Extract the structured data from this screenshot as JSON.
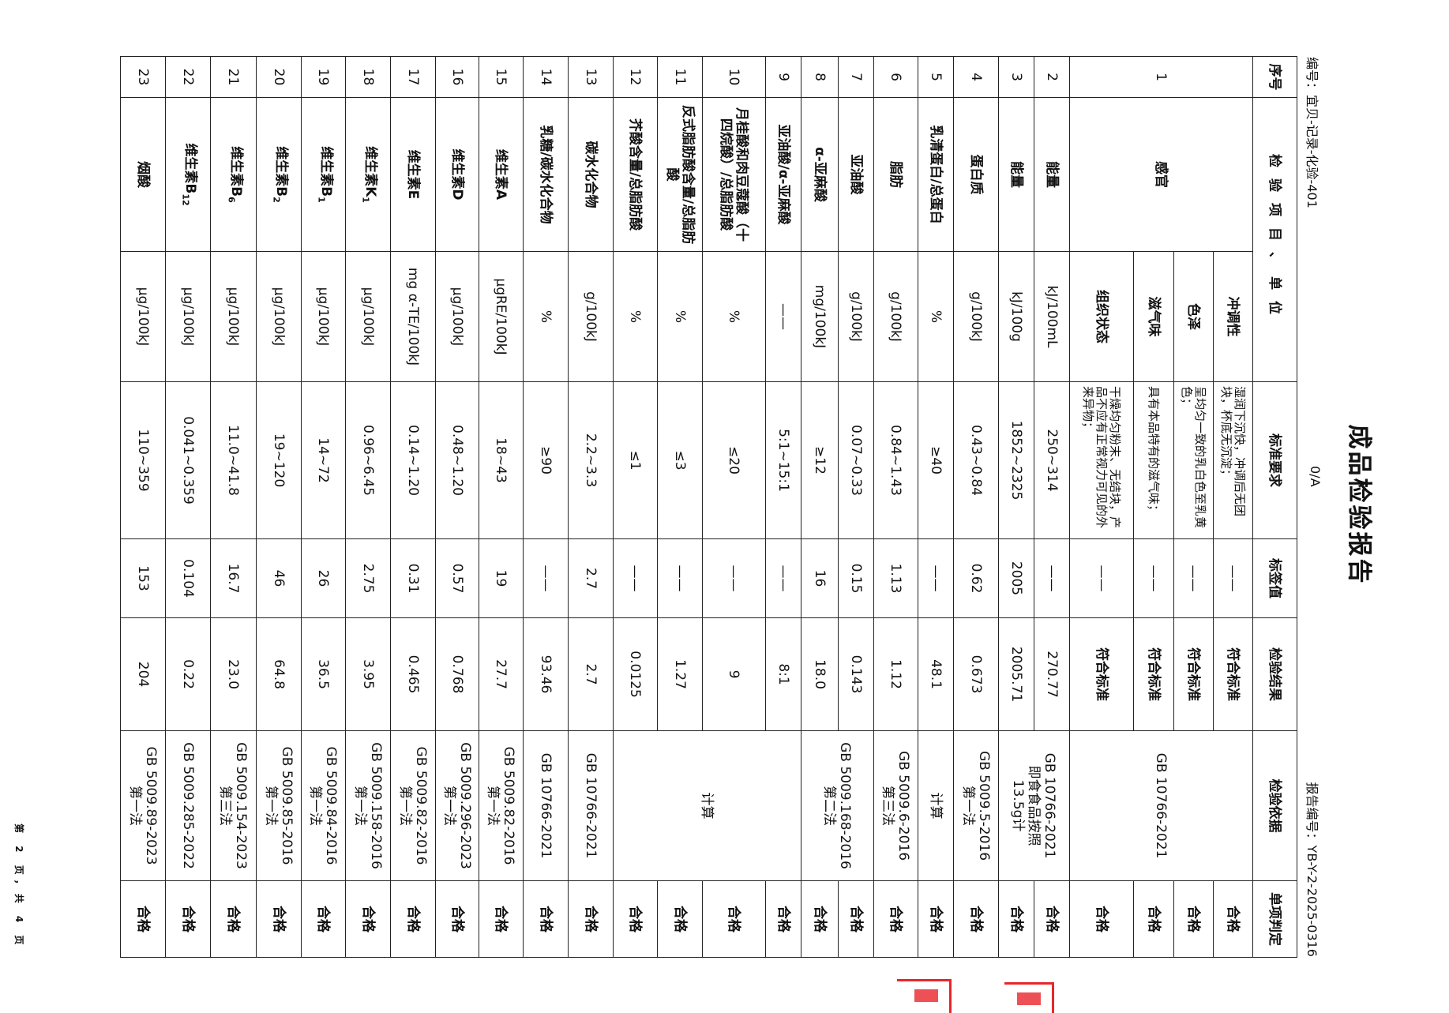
{
  "header": {
    "title": "成品检验报告",
    "doc_code": "编号：宜贝-记录-化验-401",
    "version": "0/A",
    "report_no": "报告编号：YB-Y-2-2025-0316"
  },
  "table": {
    "columns": {
      "seq": "序号",
      "item_unit": "检验项目、单位",
      "standard": "标准要求",
      "label_value": "标签值",
      "result": "检验结果",
      "basis": "检验依据",
      "verdict": "单项判定"
    },
    "sensory": {
      "seq": "1",
      "item": "感官",
      "basis": "GB 10766-2021",
      "subs": [
        {
          "unit": "冲调性",
          "standard": "湿润下沉快，冲调后无团块，杯底无沉淀；",
          "label_value": "——",
          "result": "符合标准",
          "verdict": "合格"
        },
        {
          "unit": "色泽",
          "standard": "呈均匀一致的乳白色至乳黄色；",
          "label_value": "——",
          "result": "符合标准",
          "verdict": "合格"
        },
        {
          "unit": "滋气味",
          "standard": "具有本品特有的滋气味；",
          "label_value": "——",
          "result": "符合标准",
          "verdict": "合格"
        },
        {
          "unit": "组织状态",
          "standard": "干燥均匀粉末、无结块，产品不应有正常视力可见的外来异物；",
          "label_value": "——",
          "result": "符合标准",
          "verdict": "合格"
        }
      ]
    },
    "rows": [
      {
        "seq": "2",
        "item": "能量",
        "sub": "",
        "unit": "kJ/100mL",
        "standard": "250~314",
        "label_value": "——",
        "result": "270.77",
        "verdict": "合格"
      },
      {
        "seq": "3",
        "item": "能量",
        "sub": "",
        "unit": "kJ/100g",
        "standard": "1852~2325",
        "label_value": "2005",
        "result": "2005.71",
        "verdict": "合格"
      },
      {
        "seq": "4",
        "item": "蛋白质",
        "sub": "",
        "unit": "g/100kJ",
        "standard": "0.43~0.84",
        "label_value": "0.62",
        "result": "0.673",
        "verdict": "合格"
      },
      {
        "seq": "5",
        "item": "乳清蛋白/总蛋白",
        "sub": "",
        "unit": "%",
        "standard": "≥40",
        "label_value": "——",
        "result": "48.1",
        "verdict": "合格"
      },
      {
        "seq": "6",
        "item": "脂肪",
        "sub": "",
        "unit": "g/100kJ",
        "standard": "0.84~1.43",
        "label_value": "1.13",
        "result": "1.12",
        "verdict": "合格"
      },
      {
        "seq": "7",
        "item": "亚油酸",
        "sub": "",
        "unit": "g/100kJ",
        "standard": "0.07~0.33",
        "label_value": "0.15",
        "result": "0.143",
        "verdict": "合格"
      },
      {
        "seq": "8",
        "item": "α-亚麻酸",
        "sub": "",
        "unit": "mg/100kJ",
        "standard": "≥12",
        "label_value": "16",
        "result": "18.0",
        "verdict": "合格"
      },
      {
        "seq": "9",
        "item": "亚油酸/α-亚麻酸",
        "sub": "",
        "unit": "——",
        "standard": "5:1~15:1",
        "label_value": "——",
        "result": "8:1",
        "verdict": "合格"
      },
      {
        "seq": "10",
        "item": "月桂酸和肉豆蔻酸（十四烷酸）/总脂肪酸",
        "sub": "",
        "unit": "%",
        "standard": "≤20",
        "label_value": "——",
        "result": "9",
        "verdict": "合格"
      },
      {
        "seq": "11",
        "item": "反式脂肪酸含量/总脂肪酸",
        "sub": "",
        "unit": "%",
        "standard": "≤3",
        "label_value": "——",
        "result": "1.27",
        "verdict": "合格"
      },
      {
        "seq": "12",
        "item": "芥酸含量/总脂肪酸",
        "sub": "",
        "unit": "%",
        "standard": "≤1",
        "label_value": "——",
        "result": "0.0125",
        "verdict": "合格"
      },
      {
        "seq": "13",
        "item": "碳水化合物",
        "sub": "",
        "unit": "g/100kJ",
        "standard": "2.2~3.3",
        "label_value": "2.7",
        "result": "2.7",
        "verdict": "合格"
      },
      {
        "seq": "14",
        "item": "乳糖/碳水化合物",
        "sub": "",
        "unit": "%",
        "standard": "≥90",
        "label_value": "——",
        "result": "93.46",
        "verdict": "合格"
      },
      {
        "seq": "15",
        "item": "维生素A",
        "sub": "",
        "unit": "μgRE/100kJ",
        "standard": "18~43",
        "label_value": "19",
        "result": "27.7",
        "verdict": "合格"
      },
      {
        "seq": "16",
        "item": "维生素D",
        "sub": "",
        "unit": "μg/100kJ",
        "standard": "0.48~1.20",
        "label_value": "0.57",
        "result": "0.768",
        "verdict": "合格"
      },
      {
        "seq": "17",
        "item": "维生素E",
        "sub": "",
        "unit": "mg α-TE/100kJ",
        "standard": "0.14~1.20",
        "label_value": "0.31",
        "result": "0.465",
        "verdict": "合格"
      },
      {
        "seq": "18",
        "item": "维生素K",
        "sub": "1",
        "unit": "μg/100kJ",
        "standard": "0.96~6.45",
        "label_value": "2.75",
        "result": "3.95",
        "verdict": "合格"
      },
      {
        "seq": "19",
        "item": "维生素B",
        "sub": "1",
        "unit": "μg/100kJ",
        "standard": "14~72",
        "label_value": "26",
        "result": "36.5",
        "verdict": "合格"
      },
      {
        "seq": "20",
        "item": "维生素B",
        "sub": "2",
        "unit": "μg/100kJ",
        "standard": "19~120",
        "label_value": "46",
        "result": "64.8",
        "verdict": "合格"
      },
      {
        "seq": "21",
        "item": "维生素B",
        "sub": "6",
        "unit": "μg/100kJ",
        "standard": "11.0~41.8",
        "label_value": "16.7",
        "result": "23.0",
        "verdict": "合格"
      },
      {
        "seq": "22",
        "item": "维生素B",
        "sub": "12",
        "unit": "μg/100kJ",
        "standard": "0.041~0.359",
        "label_value": "0.104",
        "result": "0.22",
        "verdict": "合格"
      },
      {
        "seq": "23",
        "item": "烟酸",
        "sub": "",
        "unit": "μg/100kJ",
        "standard": "110~359",
        "label_value": "153",
        "result": "204",
        "verdict": "合格"
      }
    ],
    "basis_groups": [
      {
        "seqs": [
          "2",
          "3"
        ],
        "lines": [
          "GB 10766-2021",
          "即食食品按照",
          "13.5g计"
        ]
      },
      {
        "seqs": [
          "4"
        ],
        "lines": [
          "GB 5009.5-2016",
          "第一法"
        ]
      },
      {
        "seqs": [
          "5"
        ],
        "lines": [
          "计算"
        ]
      },
      {
        "seqs": [
          "6"
        ],
        "lines": [
          "GB 5009.6-2016",
          "第三法"
        ]
      },
      {
        "seqs": [
          "7",
          "8"
        ],
        "lines": [
          "GB 5009.168-2016",
          "第二法"
        ]
      },
      {
        "seqs": [
          "9",
          "10",
          "11",
          "12"
        ],
        "lines": [
          "计算"
        ]
      },
      {
        "seqs": [
          "13"
        ],
        "lines": [
          "GB 10766-2021"
        ]
      },
      {
        "seqs": [
          "14"
        ],
        "lines": [
          "GB 10766-2021"
        ]
      },
      {
        "seqs": [
          "15"
        ],
        "lines": [
          "GB 5009.82-2016",
          "第一法"
        ]
      },
      {
        "seqs": [
          "16"
        ],
        "lines": [
          "GB 5009.296-2023",
          "第一法"
        ]
      },
      {
        "seqs": [
          "17"
        ],
        "lines": [
          "GB 5009.82-2016",
          "第一法"
        ]
      },
      {
        "seqs": [
          "18"
        ],
        "lines": [
          "GB 5009.158-2016",
          "第一法"
        ]
      },
      {
        "seqs": [
          "19"
        ],
        "lines": [
          "GB 5009.84-2016",
          "第一法"
        ]
      },
      {
        "seqs": [
          "20"
        ],
        "lines": [
          "GB 5009.85-2016",
          "第一法"
        ]
      },
      {
        "seqs": [
          "21"
        ],
        "lines": [
          "GB 5009.154-2023",
          "第三法"
        ]
      },
      {
        "seqs": [
          "22"
        ],
        "lines": [
          "GB 5009.285-2022"
        ]
      },
      {
        "seqs": [
          "23"
        ],
        "lines": [
          "GB 5009.89-2023",
          "第一法"
        ]
      }
    ]
  },
  "footer": {
    "page_number": "第 2 页，共 4 页"
  },
  "colors": {
    "stamp": "#e8262a",
    "ink": "#111111"
  }
}
